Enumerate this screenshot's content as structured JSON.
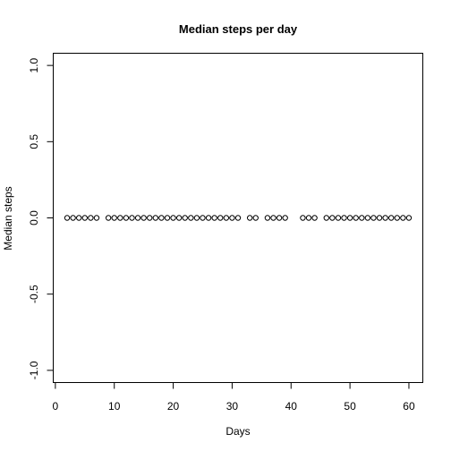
{
  "chart_data": {
    "type": "scatter",
    "title": "Median steps per day",
    "xlabel": "Days",
    "ylabel": "Median steps",
    "xlim": [
      -0.36,
      62.36
    ],
    "ylim": [
      -1.08,
      1.08
    ],
    "x_ticks": [
      0,
      10,
      20,
      30,
      40,
      50,
      60
    ],
    "y_ticks": [
      -1.0,
      -0.5,
      0.0,
      0.5,
      1.0
    ],
    "x_tick_labels": [
      "0",
      "10",
      "20",
      "30",
      "40",
      "50",
      "60"
    ],
    "y_tick_labels": [
      "-1.0",
      "-0.5",
      "0.0",
      "0.5",
      "1.0"
    ],
    "grid": false,
    "legend": "none",
    "marker": "open-circle",
    "colors": {
      "points": "#000000",
      "axes": "#000000",
      "background": "#ffffff"
    },
    "x": [
      2,
      3,
      4,
      5,
      6,
      7,
      9,
      10,
      11,
      12,
      13,
      14,
      15,
      16,
      17,
      18,
      19,
      20,
      21,
      22,
      23,
      24,
      25,
      26,
      27,
      28,
      29,
      30,
      31,
      33,
      34,
      36,
      37,
      38,
      39,
      42,
      43,
      44,
      46,
      47,
      48,
      49,
      50,
      51,
      52,
      53,
      54,
      55,
      56,
      57,
      58,
      59,
      60
    ],
    "y": [
      0,
      0,
      0,
      0,
      0,
      0,
      0,
      0,
      0,
      0,
      0,
      0,
      0,
      0,
      0,
      0,
      0,
      0,
      0,
      0,
      0,
      0,
      0,
      0,
      0,
      0,
      0,
      0,
      0,
      0,
      0,
      0,
      0,
      0,
      0,
      0,
      0,
      0,
      0,
      0,
      0,
      0,
      0,
      0,
      0,
      0,
      0,
      0,
      0,
      0,
      0,
      0,
      0
    ]
  }
}
